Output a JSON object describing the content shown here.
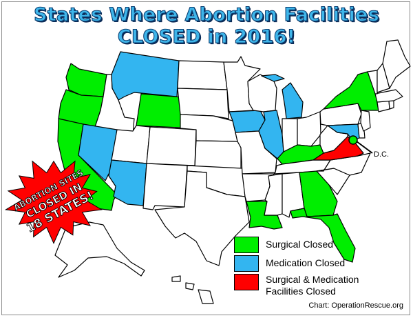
{
  "title": {
    "line1": "States Where Abortion Facilities",
    "line2": "CLOSED in 2016!"
  },
  "starburst": {
    "line1": "ABORTION SITES",
    "line2": "CLOSED IN",
    "line3": "18 STATES!"
  },
  "dc_label": "D.C.",
  "legend": [
    {
      "label": "Surgical Closed",
      "color": "#00ee00"
    },
    {
      "label": "Medication Closed",
      "color": "#33b5f0"
    },
    {
      "label": "Surgical & Medication",
      "label2": "Facilities Closed",
      "color": "#ff0000"
    }
  ],
  "credit": "Chart: OperationRescue.org",
  "colors": {
    "surgical": "#00ee00",
    "medication": "#33b5f0",
    "both": "#ff0000",
    "none": "#ffffff",
    "title_fill": "#3fb6ea",
    "title_outline": "#0a3f73"
  },
  "states": {
    "surgical_closed": [
      "Washington",
      "Oregon",
      "California",
      "Wyoming",
      "Kentucky",
      "Louisiana",
      "Georgia",
      "Florida",
      "New York",
      "Washington D.C."
    ],
    "medication_closed": [
      "Nevada",
      "Arizona",
      "Montana",
      "Iowa",
      "Illinois",
      "Michigan",
      "Maryland"
    ],
    "surgical_and_medication_closed": [
      "Virginia"
    ]
  }
}
